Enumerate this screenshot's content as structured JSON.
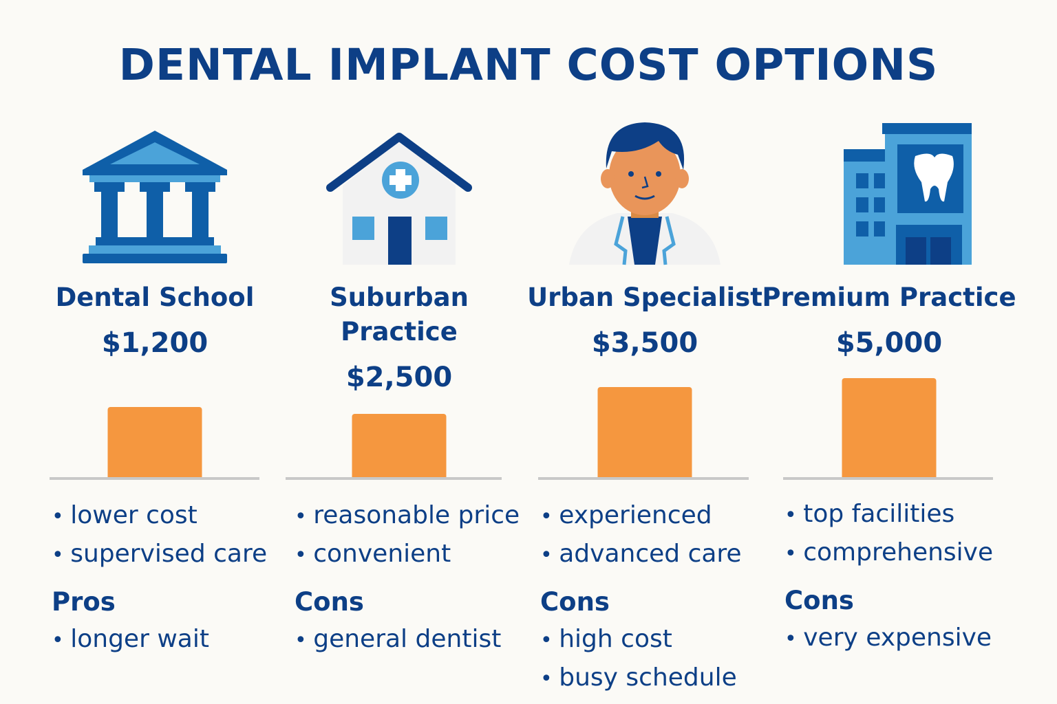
{
  "title": "DENTAL IMPLANT COST OPTIONS",
  "colors": {
    "title": "#0d3f86",
    "bar": "#f5973f",
    "icon_dark": "#0f5fa8",
    "icon_light": "#4ba3d9",
    "baseline": "#c8c8c8"
  },
  "options": [
    {
      "name": "Dental School",
      "price": "$1,200",
      "icon": "bank-building-icon",
      "bullets": [
        "lower cost",
        "supervised care"
      ],
      "section": "Pros",
      "section_bullets": [
        "longer wait"
      ]
    },
    {
      "name": "Suburban Practice",
      "name_lines": [
        "Suburban",
        "Practice"
      ],
      "price": "$2,500",
      "icon": "clinic-house-icon",
      "bullets": [
        "reasonable price",
        "convenient"
      ],
      "section": "Cons",
      "section_bullets": [
        "general dentist"
      ]
    },
    {
      "name": "Urban Specialist",
      "price": "$3,500",
      "icon": "doctor-icon",
      "bullets": [
        "experienced",
        "advanced care"
      ],
      "section": "Cons",
      "section_bullets": [
        "high cost",
        "busy schedule"
      ]
    },
    {
      "name": "Premium Practice",
      "price": "$5,000",
      "icon": "dental-building-icon",
      "bullets": [
        "top facilities",
        "comprehensive"
      ],
      "section": "Cons",
      "section_bullets": [
        "very expensive"
      ]
    }
  ]
}
